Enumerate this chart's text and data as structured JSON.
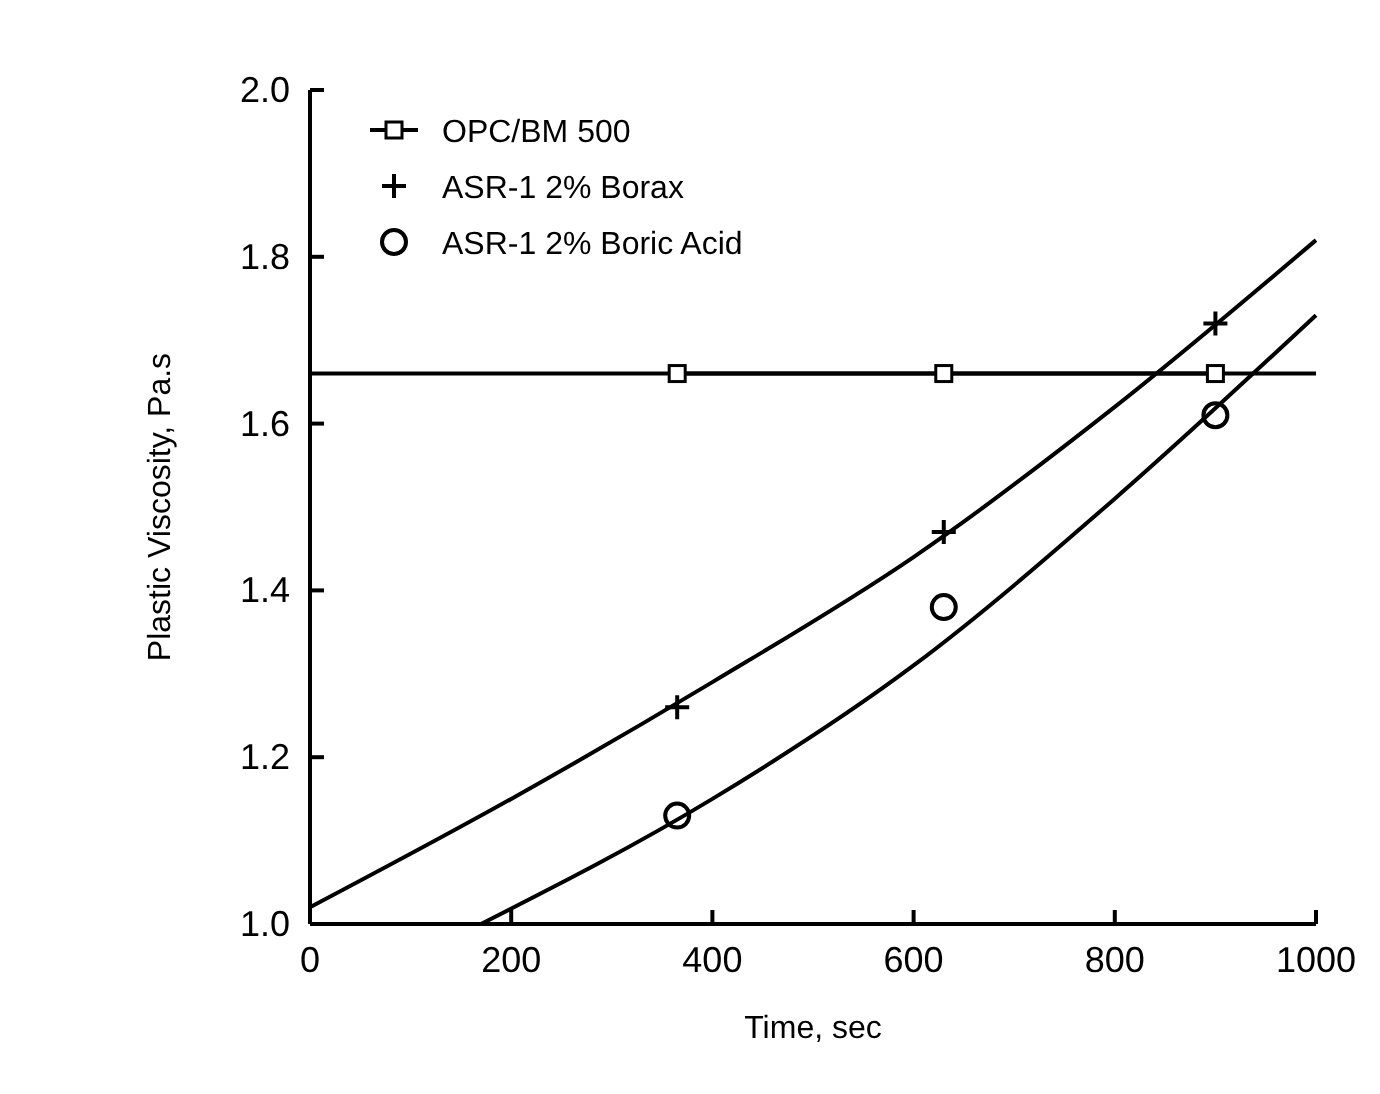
{
  "chart_data": {
    "type": "line",
    "xlabel": "Time, sec",
    "ylabel": "Plastic Viscosity, Pa.s",
    "xlim": [
      0,
      1000
    ],
    "xticks": [
      0,
      200,
      400,
      600,
      800,
      1000
    ],
    "ylim": [
      1.0,
      2.0
    ],
    "yticks": [
      {
        "value": 1.0,
        "label": "1.0"
      },
      {
        "value": 1.2,
        "label": "1.2"
      },
      {
        "value": 1.4,
        "label": "1.4"
      },
      {
        "value": 1.6,
        "label": "1.6"
      },
      {
        "value": 1.8,
        "label": "1.8"
      },
      {
        "value": 2.0,
        "label": "2.0"
      }
    ],
    "grid": false,
    "legend": "top left",
    "ref_lines": [
      {
        "axis": "y",
        "value": 1.66,
        "color": "#000000"
      }
    ],
    "series": [
      {
        "name": "OPC/BM 500",
        "marker": "square",
        "color": "#000000",
        "x": [
          365,
          630,
          900
        ],
        "values": [
          1.66,
          1.66,
          1.66
        ]
      },
      {
        "name": "ASR-1 2% Borax",
        "type": "scatter",
        "marker": "cross",
        "color": "#000000",
        "x": [
          365,
          630,
          900
        ],
        "values": [
          1.26,
          1.47,
          1.72
        ]
      },
      {
        "name": "ASR-1 2% Boric Acid",
        "type": "scatter",
        "marker": "circle",
        "color": "#000000",
        "x": [
          365,
          630,
          900
        ],
        "values": [
          1.13,
          1.38,
          1.61
        ]
      },
      {
        "marker": "none",
        "color": "#000000",
        "x": [
          0,
          200,
          400,
          600,
          800,
          1000
        ],
        "values": [
          1.02,
          1.15,
          1.29,
          1.44,
          1.62,
          1.82
        ]
      },
      {
        "marker": "none",
        "color": "#000000",
        "x": [
          170,
          400,
          600,
          800,
          1000
        ],
        "values": [
          1.0,
          1.15,
          1.31,
          1.51,
          1.73
        ]
      }
    ]
  }
}
